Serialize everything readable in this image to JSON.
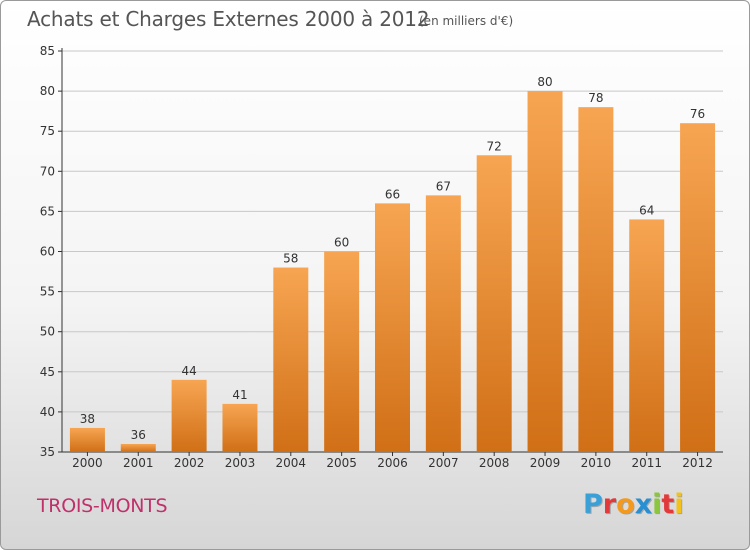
{
  "header": {
    "title": "Achats et Charges Externes 2000 à 2012",
    "unit": "(en milliers d'€)"
  },
  "footer": {
    "commune": "TROIS-MONTS",
    "brand": "Proxiti"
  },
  "colors": {
    "bar_top": "#f7a552",
    "bar_bottom": "#d06f16",
    "axis": "#333333",
    "grid": "#c8c8c8",
    "commune": "#c0306a"
  },
  "chart_data": {
    "type": "bar",
    "title": "Achats et Charges Externes 2000 à 2012",
    "subtitle": "(en milliers d'€)",
    "xlabel": "",
    "ylabel": "",
    "categories": [
      "2000",
      "2001",
      "2002",
      "2003",
      "2004",
      "2005",
      "2006",
      "2007",
      "2008",
      "2009",
      "2010",
      "2011",
      "2012"
    ],
    "values": [
      38,
      36,
      44,
      41,
      58,
      60,
      66,
      67,
      72,
      80,
      78,
      64,
      76
    ],
    "ylim": [
      35,
      85
    ],
    "yticks": [
      35,
      40,
      45,
      50,
      55,
      60,
      65,
      70,
      75,
      80,
      85
    ],
    "grid": true,
    "data_labels": true
  }
}
